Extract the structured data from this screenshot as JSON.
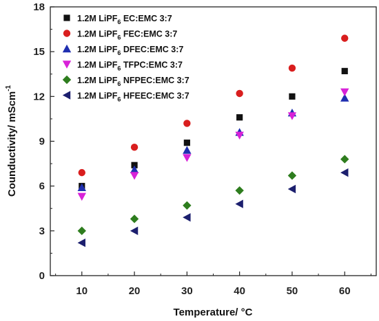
{
  "chart_data": {
    "type": "scatter",
    "xlabel": "Temperature/ °C",
    "ylabel": "Counductivity/ mScm",
    "ylabel_superscript": "-1",
    "xlim": [
      4,
      66
    ],
    "ylim": [
      0,
      18
    ],
    "xticks": [
      10,
      20,
      30,
      40,
      50,
      60
    ],
    "yticks": [
      0,
      3,
      6,
      9,
      12,
      15,
      18
    ],
    "legend_placement": "top-left",
    "x": [
      10,
      20,
      30,
      40,
      50,
      60
    ],
    "series": [
      {
        "name": "1.2M LiPF6 EC:EMC 3:7",
        "label_main": "1.2M LiPF",
        "label_sub": "6",
        "label_rest": " EC:EMC 3:7",
        "marker": "square",
        "color": "#111111",
        "values": [
          6.0,
          7.4,
          8.9,
          10.6,
          12.0,
          13.7
        ]
      },
      {
        "name": "1.2M LiPF6 FEC:EMC 3:7",
        "label_main": "1.2M LiPF",
        "label_sub": "6",
        "label_rest": " FEC:EMC 3:7",
        "marker": "circle",
        "color": "#d91e1e",
        "values": [
          6.9,
          8.6,
          10.2,
          12.2,
          13.9,
          15.9
        ]
      },
      {
        "name": "1.2M LiPF6 DFEC:EMC 3:7",
        "label_main": "1.2M LiPF",
        "label_sub": "6",
        "label_rest": " DFEC:EMC 3:7",
        "marker": "triangle-up",
        "color": "#1f2fb0",
        "values": [
          5.9,
          7.1,
          8.4,
          9.6,
          10.9,
          11.9
        ]
      },
      {
        "name": "1.2M LiPF6 TFPC:EMC 3:7",
        "label_main": "1.2M LiPF",
        "label_sub": "6",
        "label_rest": " TFPC:EMC 3:7",
        "marker": "triangle-down",
        "color": "#d822d8",
        "values": [
          5.3,
          6.7,
          7.9,
          9.4,
          10.7,
          12.3
        ]
      },
      {
        "name": "1.2M LiPF6 NFPEC:EMC 3:7",
        "label_main": "1.2M LiPF",
        "label_sub": "6",
        "label_rest": " NFPEC:EMC 3:7",
        "marker": "diamond",
        "color": "#2e7d1e",
        "values": [
          3.0,
          3.8,
          4.7,
          5.7,
          6.7,
          7.8
        ]
      },
      {
        "name": "1.2M LiPF6 HFEEC:EMC 3:7",
        "label_main": "1.2M LiPF",
        "label_sub": "6",
        "label_rest": " HFEEC:EMC 3:7",
        "marker": "triangle-left",
        "color": "#1c1f6e",
        "values": [
          2.2,
          3.0,
          3.9,
          4.8,
          5.8,
          6.9
        ]
      }
    ]
  }
}
